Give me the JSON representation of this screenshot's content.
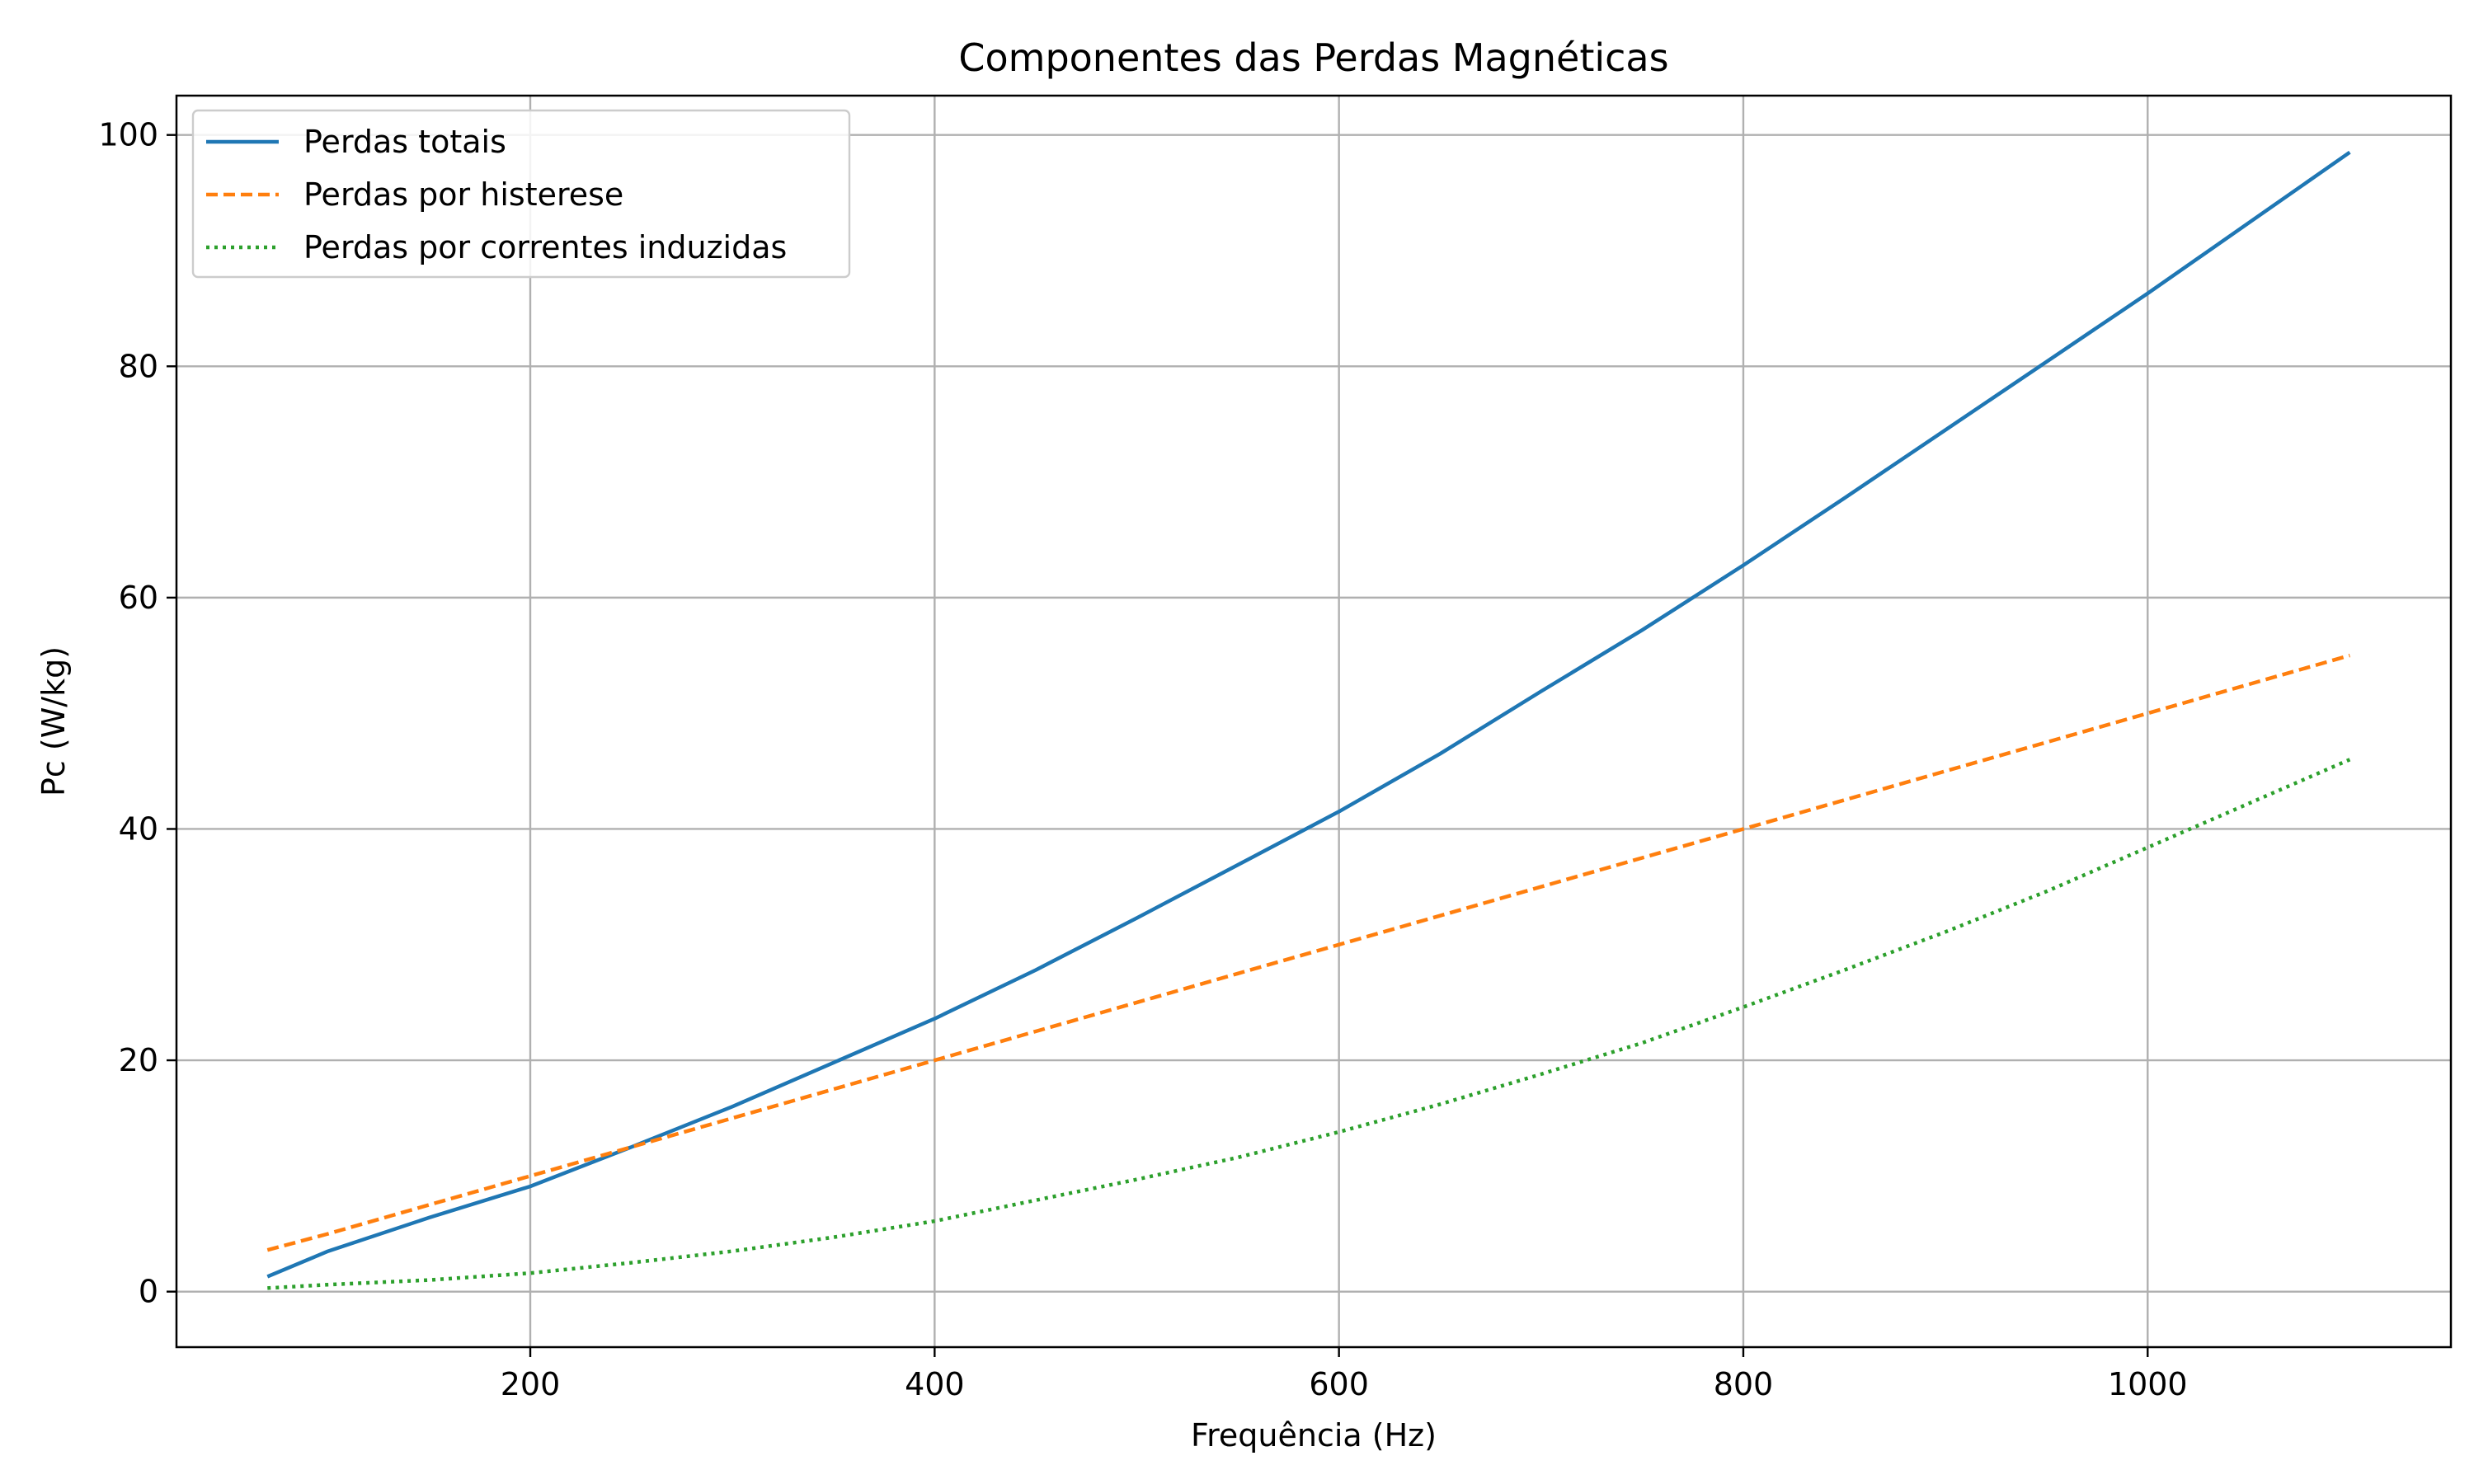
{
  "chart_data": {
    "type": "line",
    "title": "Componentes das Perdas Magnéticas",
    "xlabel": "Frequência (Hz)",
    "ylabel": "Pc (W/kg)",
    "xlim": [
      25,
      1150
    ],
    "ylim": [
      -4.8,
      103.4
    ],
    "xticks": [
      200,
      400,
      600,
      800,
      1000
    ],
    "yticks": [
      0,
      20,
      40,
      60,
      80,
      100
    ],
    "grid": true,
    "legend_position": "upper-left",
    "series": [
      {
        "name": "Perdas totais",
        "color": "#1f77b4",
        "style": "solid",
        "x": [
          70,
          100,
          150,
          200,
          250,
          300,
          350,
          400,
          450,
          500,
          550,
          600,
          650,
          700,
          750,
          800,
          850,
          900,
          950,
          1000,
          1050,
          1100
        ],
        "y": [
          1.3,
          3.5,
          6.4,
          9.1,
          12.5,
          16.0,
          19.8,
          23.6,
          27.8,
          32.3,
          36.9,
          41.5,
          46.5,
          51.9,
          57.2,
          62.8,
          68.6,
          74.5,
          80.4,
          86.3,
          92.4,
          98.5
        ]
      },
      {
        "name": "Perdas por histerese",
        "color": "#ff7f0e",
        "style": "dashed",
        "x": [
          70,
          100,
          150,
          200,
          250,
          300,
          350,
          400,
          450,
          500,
          550,
          600,
          650,
          700,
          750,
          800,
          850,
          900,
          950,
          1000,
          1050,
          1100
        ],
        "y": [
          3.6,
          5.0,
          7.5,
          10.0,
          12.5,
          15.0,
          17.5,
          20.0,
          22.5,
          25.0,
          27.5,
          30.0,
          32.5,
          35.0,
          37.5,
          40.0,
          42.5,
          45.0,
          47.5,
          50.0,
          52.5,
          55.0
        ]
      },
      {
        "name": "Perdas por correntes induzidas",
        "color": "#2ca02c",
        "style": "dotted",
        "x": [
          70,
          100,
          150,
          200,
          250,
          300,
          350,
          400,
          450,
          500,
          550,
          600,
          650,
          700,
          750,
          800,
          850,
          900,
          950,
          1000,
          1050,
          1100
        ],
        "y": [
          0.3,
          0.6,
          1.0,
          1.6,
          2.5,
          3.5,
          4.7,
          6.1,
          7.9,
          9.7,
          11.6,
          13.8,
          16.2,
          18.8,
          21.5,
          24.6,
          27.8,
          31.1,
          34.6,
          38.4,
          42.2,
          46.0
        ]
      }
    ]
  }
}
